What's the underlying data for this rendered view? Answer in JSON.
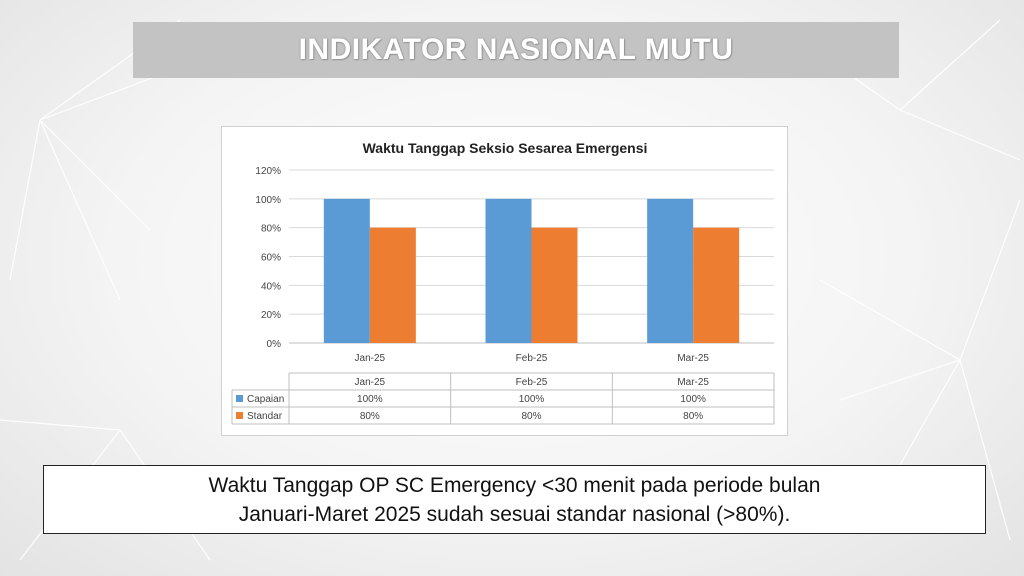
{
  "slide": {
    "title": "INDIKATOR NASIONAL MUTU"
  },
  "note": {
    "line1": "Waktu Tanggap OP SC Emergency <30 menit pada periode bulan",
    "line2": "Januari-Maret 2025 sudah sesuai standar nasional (>80%)."
  },
  "chart_data": {
    "type": "bar",
    "title": "Waktu Tanggap Seksio Sesarea Emergensi",
    "categories": [
      "Jan-25",
      "Feb-25",
      "Mar-25"
    ],
    "series": [
      {
        "name": "Capaian",
        "values": [
          100,
          100,
          100
        ],
        "labels": [
          "100%",
          "100%",
          "100%"
        ],
        "color": "#5b9bd5"
      },
      {
        "name": "Standar",
        "values": [
          80,
          80,
          80
        ],
        "labels": [
          "80%",
          "80%",
          "80%"
        ],
        "color": "#ed7d31"
      }
    ],
    "ylim": [
      0,
      120
    ],
    "yticks": [
      0,
      20,
      40,
      60,
      80,
      100,
      120
    ],
    "ytick_labels": [
      "0%",
      "20%",
      "40%",
      "60%",
      "80%",
      "100%",
      "120%"
    ],
    "grid": true,
    "legend": "data-table-below",
    "xlabel": "",
    "ylabel": ""
  }
}
